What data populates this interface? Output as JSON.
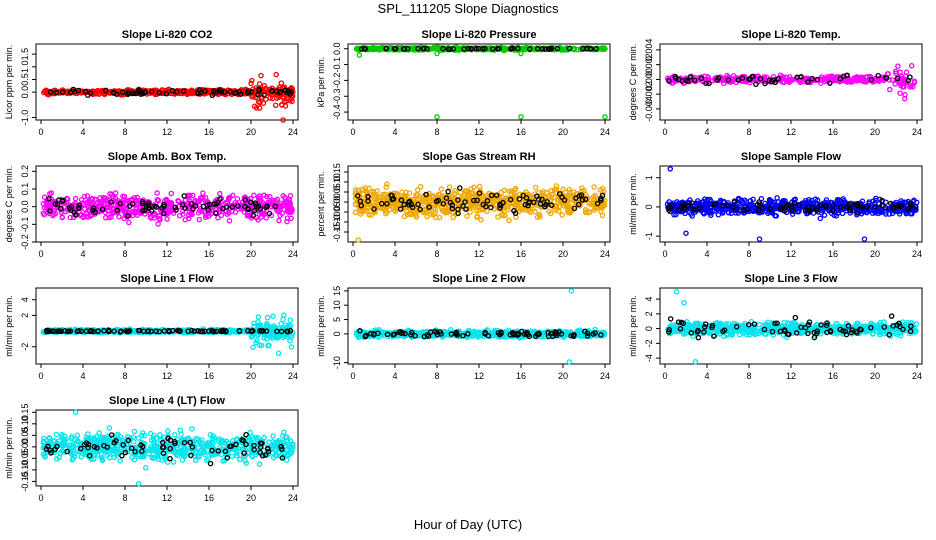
{
  "title": "SPL_111205  Slope Diagnostics",
  "x_caption": "Hour of Day (UTC)",
  "x_ticks": [
    "0",
    "4",
    "8",
    "12",
    "16",
    "20",
    "24"
  ],
  "chart_data": [
    {
      "type": "scatter",
      "title": "Slope Li-820 CO2",
      "ylabel": "Licor ppm per min.",
      "xlim": [
        0,
        24
      ],
      "ylim": [
        -1.1,
        1.9
      ],
      "yticks": [
        "-1.0",
        "0.0",
        "0.5",
        "1.0",
        "1.5"
      ],
      "grid": false,
      "series": [
        {
          "color": "#ff0000",
          "values_summary": "dense band around 0 (~±0.3) from 0–20 h; spread to about -1.0 to 1.8 after 20 h"
        },
        {
          "color": "#000000",
          "values_summary": "sparse points near 0"
        }
      ]
    },
    {
      "type": "scatter",
      "title": "Slope Li-820 Pressure",
      "ylabel": "kPa per min.",
      "xlim": [
        0,
        24
      ],
      "ylim": [
        -0.45,
        0.03
      ],
      "yticks": [
        "-0.4",
        "-0.3",
        "-0.2",
        "-0.1",
        "0.0"
      ],
      "grid": false,
      "series": [
        {
          "color": "#00cc00",
          "values_summary": "dense band at ~0.0; isolated outliers near -0.43 at about 8, 16 and 24 h"
        },
        {
          "color": "#000000",
          "values_summary": "sparse points at ~0.0"
        }
      ]
    },
    {
      "type": "scatter",
      "title": "Slope Li-820 Temp.",
      "ylabel": "degrees C per min.",
      "xlim": [
        0,
        24
      ],
      "ylim": [
        -0.0055,
        0.0048
      ],
      "yticks": [
        "-0.004",
        "-0.002",
        "0.000",
        "0.002",
        "0.004"
      ],
      "grid": false,
      "series": [
        {
          "color": "#ff00ff",
          "values_summary": "mostly 0.000 with ~±0.0015 scatter; spread to about -0.005 to 0.0045 after 21 h"
        },
        {
          "color": "#000000",
          "values_summary": "sparse points near 0.000"
        }
      ]
    },
    {
      "type": "scatter",
      "title": "Slope Amb. Box Temp.",
      "ylabel": "degrees C per min.",
      "xlim": [
        0,
        24
      ],
      "ylim": [
        -0.2,
        0.23
      ],
      "yticks": [
        "-0.2",
        "-0.1",
        "0.0",
        "0.1",
        "0.2"
      ],
      "grid": false,
      "series": [
        {
          "color": "#ff00ff",
          "values_summary": "scatter roughly -0.15 to 0.2 across the day"
        },
        {
          "color": "#000000",
          "values_summary": "sparse points roughly -0.12 to 0.12"
        }
      ]
    },
    {
      "type": "scatter",
      "title": "Slope Gas Stream RH",
      "ylabel": "percent per min.",
      "xlim": [
        0,
        24
      ],
      "ylim": [
        -0.2,
        0.18
      ],
      "yticks": [
        "-0.15",
        "-0.10",
        "-0.05",
        "0.00",
        "0.05",
        "0.10",
        "0.15"
      ],
      "grid": false,
      "series": [
        {
          "color": "#f0a800",
          "values_summary": "dense scatter roughly -0.15 to 0.15 across the day"
        },
        {
          "color": "#000000",
          "values_summary": "sparse points roughly -0.1 to 0.12; one near -0.19 at ~0.5 h"
        }
      ]
    },
    {
      "type": "scatter",
      "title": "Slope Sample Flow",
      "ylabel": "ml/min per min.",
      "xlim": [
        0,
        24
      ],
      "ylim": [
        -1.2,
        1.4
      ],
      "yticks": [
        "-1",
        "0",
        "1"
      ],
      "grid": false,
      "series": [
        {
          "color": "#0000ff",
          "values_summary": "dense band near 0 with scatter to about -1 and 1.3"
        },
        {
          "color": "#000000",
          "values_summary": "sparse points near 0"
        }
      ]
    },
    {
      "type": "scatter",
      "title": "Slope Line 1 Flow",
      "ylabel": "ml/min per min.",
      "xlim": [
        0,
        24
      ],
      "ylim": [
        -4.2,
        5.5
      ],
      "yticks": [
        "-2",
        "2",
        "4"
      ],
      "grid": false,
      "series": [
        {
          "color": "#00e5ee",
          "values_summary": "tight band at 0 (~±0.5); spread to about -4 to 5 after 20 h"
        },
        {
          "color": "#000000",
          "values_summary": "points at ~0"
        }
      ]
    },
    {
      "type": "scatter",
      "title": "Slope Line 2 Flow",
      "ylabel": "ml/min per min.",
      "xlim": [
        0,
        24
      ],
      "ylim": [
        -10.5,
        16
      ],
      "yticks": [
        "-10",
        "0",
        "5",
        "10",
        "15"
      ],
      "grid": false,
      "series": [
        {
          "color": "#00e5ee",
          "values_summary": "band near 0 (~±3); outliers to about -10 and 15 near 20–21 h"
        },
        {
          "color": "#000000",
          "values_summary": "points near 0"
        }
      ]
    },
    {
      "type": "scatter",
      "title": "Slope Line 3 Flow",
      "ylabel": "ml/min per min.",
      "xlim": [
        0,
        24
      ],
      "ylim": [
        -4.8,
        5.5
      ],
      "yticks": [
        "-4",
        "-2",
        "0",
        "2",
        "4"
      ],
      "grid": false,
      "series": [
        {
          "color": "#00e5ee",
          "values_summary": "band roughly -2 to 2; outliers to about -4.5 and 5 near 1–3 h"
        },
        {
          "color": "#000000",
          "values_summary": "sparse points roughly -2.5 to 3"
        }
      ]
    },
    {
      "type": "scatter",
      "title": "Slope Line 4 (LT) Flow",
      "ylabel": "ml/min per min.",
      "xlim": [
        0,
        24
      ],
      "ylim": [
        -0.17,
        0.16
      ],
      "yticks": [
        "-0.15",
        "-0.10",
        "-0.05",
        "0.00",
        "0.05",
        "0.10",
        "0.15"
      ],
      "grid": false,
      "series": [
        {
          "color": "#00e5ee",
          "values_summary": "dense scatter roughly -0.12 to 0.14 across the day"
        },
        {
          "color": "#000000",
          "values_summary": "sparse points roughly -0.16 to 0.12"
        }
      ]
    }
  ]
}
